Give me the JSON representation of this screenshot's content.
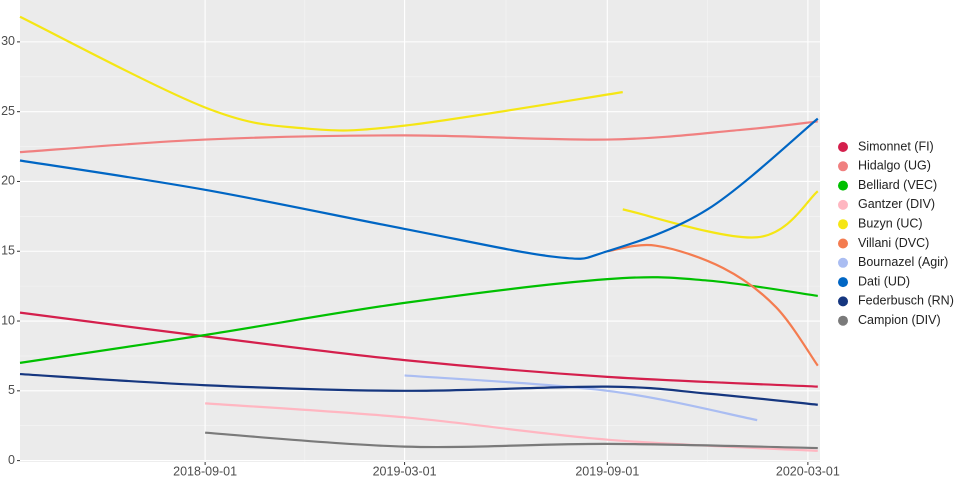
{
  "chart_data": {
    "type": "line",
    "xlim": [
      "2018-03-17",
      "2020-03-12"
    ],
    "xticks": [
      "2018-09-01",
      "2019-03-01",
      "2019-09-01",
      "2020-03-01"
    ],
    "ylim": [
      -0.1,
      33
    ],
    "yticks": [
      0,
      5,
      10,
      15,
      20,
      25,
      30
    ],
    "grid": true,
    "legend": "right",
    "series": [
      {
        "name": "Simonnet (FI)",
        "color": "#d41f4c",
        "x": [
          "2018-03-17",
          "2018-09-01",
          "2019-03-01",
          "2019-09-01",
          "2020-03-10"
        ],
        "values": [
          10.6,
          8.9,
          7.2,
          6.0,
          5.3
        ]
      },
      {
        "name": "Hidalgo (UG)",
        "color": "#f08080",
        "x": [
          "2018-03-17",
          "2018-09-01",
          "2019-03-01",
          "2019-09-01",
          "2020-01-01",
          "2020-03-10"
        ],
        "values": [
          22.1,
          23.0,
          23.3,
          23.0,
          23.7,
          24.3
        ]
      },
      {
        "name": "Belliard (VEC)",
        "color": "#00c000",
        "x": [
          "2018-03-17",
          "2018-09-01",
          "2019-03-01",
          "2019-09-01",
          "2019-12-01",
          "2020-03-10"
        ],
        "values": [
          7.0,
          9.0,
          11.3,
          13.0,
          12.9,
          11.8
        ]
      },
      {
        "name": "Gantzer (DIV)",
        "color": "#ffb6c1",
        "x": [
          "2018-09-01",
          "2019-03-01",
          "2019-09-01",
          "2020-03-10"
        ],
        "values": [
          4.1,
          3.1,
          1.5,
          0.7
        ]
      },
      {
        "name": "Buzyn (UC)",
        "color": "#f5e614",
        "x": [
          "2018-03-17",
          "2018-09-01",
          "2018-12-01",
          "2019-03-01",
          "2019-09-15",
          "2019-09-16",
          "2019-09-15",
          "2020-01-15",
          "2020-03-10"
        ],
        "values": [
          31.8,
          25.3,
          23.8,
          24.0,
          26.4,
          null,
          18.0,
          16.0,
          19.3
        ]
      },
      {
        "name": "Villani (DVC)",
        "color": "#f47c50",
        "x": [
          "2019-09-01",
          "2019-10-15",
          "2019-12-15",
          "2020-02-01",
          "2020-03-10"
        ],
        "values": [
          15.0,
          15.4,
          13.8,
          11.0,
          6.8
        ]
      },
      {
        "name": "Bournazel (Agir)",
        "color": "#aabdf2",
        "x": [
          "2019-03-01",
          "2019-09-01",
          "2020-01-15"
        ],
        "values": [
          6.1,
          5.0,
          2.9
        ]
      },
      {
        "name": "Dati (UD)",
        "color": "#0066c4",
        "x": [
          "2018-03-17",
          "2018-09-01",
          "2019-03-01",
          "2019-07-15",
          "2019-09-01",
          "2019-12-01",
          "2020-03-10"
        ],
        "values": [
          21.5,
          19.4,
          16.6,
          14.6,
          15.0,
          18.0,
          24.5
        ]
      },
      {
        "name": "Federbusch (RN)",
        "color": "#15367f",
        "x": [
          "2018-03-17",
          "2018-09-01",
          "2019-03-01",
          "2019-09-01",
          "2019-12-01",
          "2020-03-10"
        ],
        "values": [
          6.2,
          5.4,
          5.0,
          5.3,
          4.8,
          4.0
        ]
      },
      {
        "name": "Campion (DIV)",
        "color": "#7a7a7a",
        "x": [
          "2018-09-01",
          "2019-03-01",
          "2019-09-01",
          "2020-03-10"
        ],
        "values": [
          2.0,
          1.0,
          1.2,
          0.9
        ]
      }
    ]
  }
}
